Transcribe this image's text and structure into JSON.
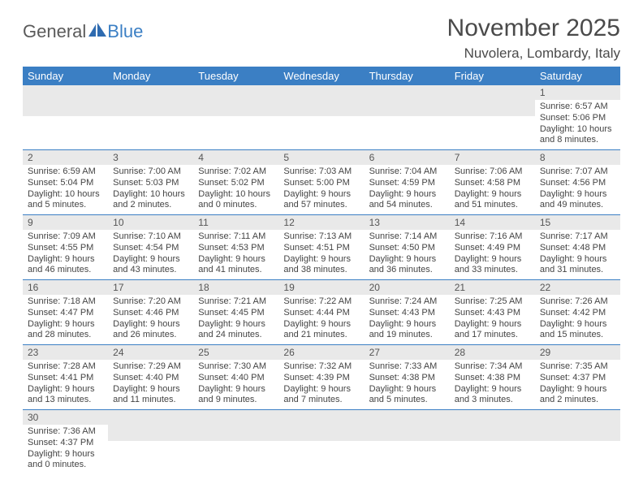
{
  "logo": {
    "text1": "General",
    "text2": "Blue"
  },
  "title": "November 2025",
  "location": "Nuvolera, Lombardy, Italy",
  "colors": {
    "header_bg": "#3b7fc4",
    "header_text": "#ffffff",
    "daynum_bg": "#e9e9e9",
    "row_divider": "#3b7fc4",
    "body_text": "#444444",
    "title_text": "#4a4a4a"
  },
  "day_headers": [
    "Sunday",
    "Monday",
    "Tuesday",
    "Wednesday",
    "Thursday",
    "Friday",
    "Saturday"
  ],
  "weeks": [
    [
      null,
      null,
      null,
      null,
      null,
      null,
      {
        "n": "1",
        "sr": "6:57 AM",
        "ss": "5:06 PM",
        "dl": "10 hours and 8 minutes."
      }
    ],
    [
      {
        "n": "2",
        "sr": "6:59 AM",
        "ss": "5:04 PM",
        "dl": "10 hours and 5 minutes."
      },
      {
        "n": "3",
        "sr": "7:00 AM",
        "ss": "5:03 PM",
        "dl": "10 hours and 2 minutes."
      },
      {
        "n": "4",
        "sr": "7:02 AM",
        "ss": "5:02 PM",
        "dl": "10 hours and 0 minutes."
      },
      {
        "n": "5",
        "sr": "7:03 AM",
        "ss": "5:00 PM",
        "dl": "9 hours and 57 minutes."
      },
      {
        "n": "6",
        "sr": "7:04 AM",
        "ss": "4:59 PM",
        "dl": "9 hours and 54 minutes."
      },
      {
        "n": "7",
        "sr": "7:06 AM",
        "ss": "4:58 PM",
        "dl": "9 hours and 51 minutes."
      },
      {
        "n": "8",
        "sr": "7:07 AM",
        "ss": "4:56 PM",
        "dl": "9 hours and 49 minutes."
      }
    ],
    [
      {
        "n": "9",
        "sr": "7:09 AM",
        "ss": "4:55 PM",
        "dl": "9 hours and 46 minutes."
      },
      {
        "n": "10",
        "sr": "7:10 AM",
        "ss": "4:54 PM",
        "dl": "9 hours and 43 minutes."
      },
      {
        "n": "11",
        "sr": "7:11 AM",
        "ss": "4:53 PM",
        "dl": "9 hours and 41 minutes."
      },
      {
        "n": "12",
        "sr": "7:13 AM",
        "ss": "4:51 PM",
        "dl": "9 hours and 38 minutes."
      },
      {
        "n": "13",
        "sr": "7:14 AM",
        "ss": "4:50 PM",
        "dl": "9 hours and 36 minutes."
      },
      {
        "n": "14",
        "sr": "7:16 AM",
        "ss": "4:49 PM",
        "dl": "9 hours and 33 minutes."
      },
      {
        "n": "15",
        "sr": "7:17 AM",
        "ss": "4:48 PM",
        "dl": "9 hours and 31 minutes."
      }
    ],
    [
      {
        "n": "16",
        "sr": "7:18 AM",
        "ss": "4:47 PM",
        "dl": "9 hours and 28 minutes."
      },
      {
        "n": "17",
        "sr": "7:20 AM",
        "ss": "4:46 PM",
        "dl": "9 hours and 26 minutes."
      },
      {
        "n": "18",
        "sr": "7:21 AM",
        "ss": "4:45 PM",
        "dl": "9 hours and 24 minutes."
      },
      {
        "n": "19",
        "sr": "7:22 AM",
        "ss": "4:44 PM",
        "dl": "9 hours and 21 minutes."
      },
      {
        "n": "20",
        "sr": "7:24 AM",
        "ss": "4:43 PM",
        "dl": "9 hours and 19 minutes."
      },
      {
        "n": "21",
        "sr": "7:25 AM",
        "ss": "4:43 PM",
        "dl": "9 hours and 17 minutes."
      },
      {
        "n": "22",
        "sr": "7:26 AM",
        "ss": "4:42 PM",
        "dl": "9 hours and 15 minutes."
      }
    ],
    [
      {
        "n": "23",
        "sr": "7:28 AM",
        "ss": "4:41 PM",
        "dl": "9 hours and 13 minutes."
      },
      {
        "n": "24",
        "sr": "7:29 AM",
        "ss": "4:40 PM",
        "dl": "9 hours and 11 minutes."
      },
      {
        "n": "25",
        "sr": "7:30 AM",
        "ss": "4:40 PM",
        "dl": "9 hours and 9 minutes."
      },
      {
        "n": "26",
        "sr": "7:32 AM",
        "ss": "4:39 PM",
        "dl": "9 hours and 7 minutes."
      },
      {
        "n": "27",
        "sr": "7:33 AM",
        "ss": "4:38 PM",
        "dl": "9 hours and 5 minutes."
      },
      {
        "n": "28",
        "sr": "7:34 AM",
        "ss": "4:38 PM",
        "dl": "9 hours and 3 minutes."
      },
      {
        "n": "29",
        "sr": "7:35 AM",
        "ss": "4:37 PM",
        "dl": "9 hours and 2 minutes."
      }
    ],
    [
      {
        "n": "30",
        "sr": "7:36 AM",
        "ss": "4:37 PM",
        "dl": "9 hours and 0 minutes."
      },
      null,
      null,
      null,
      null,
      null,
      null
    ]
  ],
  "labels": {
    "sunrise": "Sunrise:",
    "sunset": "Sunset:",
    "daylight": "Daylight:"
  }
}
